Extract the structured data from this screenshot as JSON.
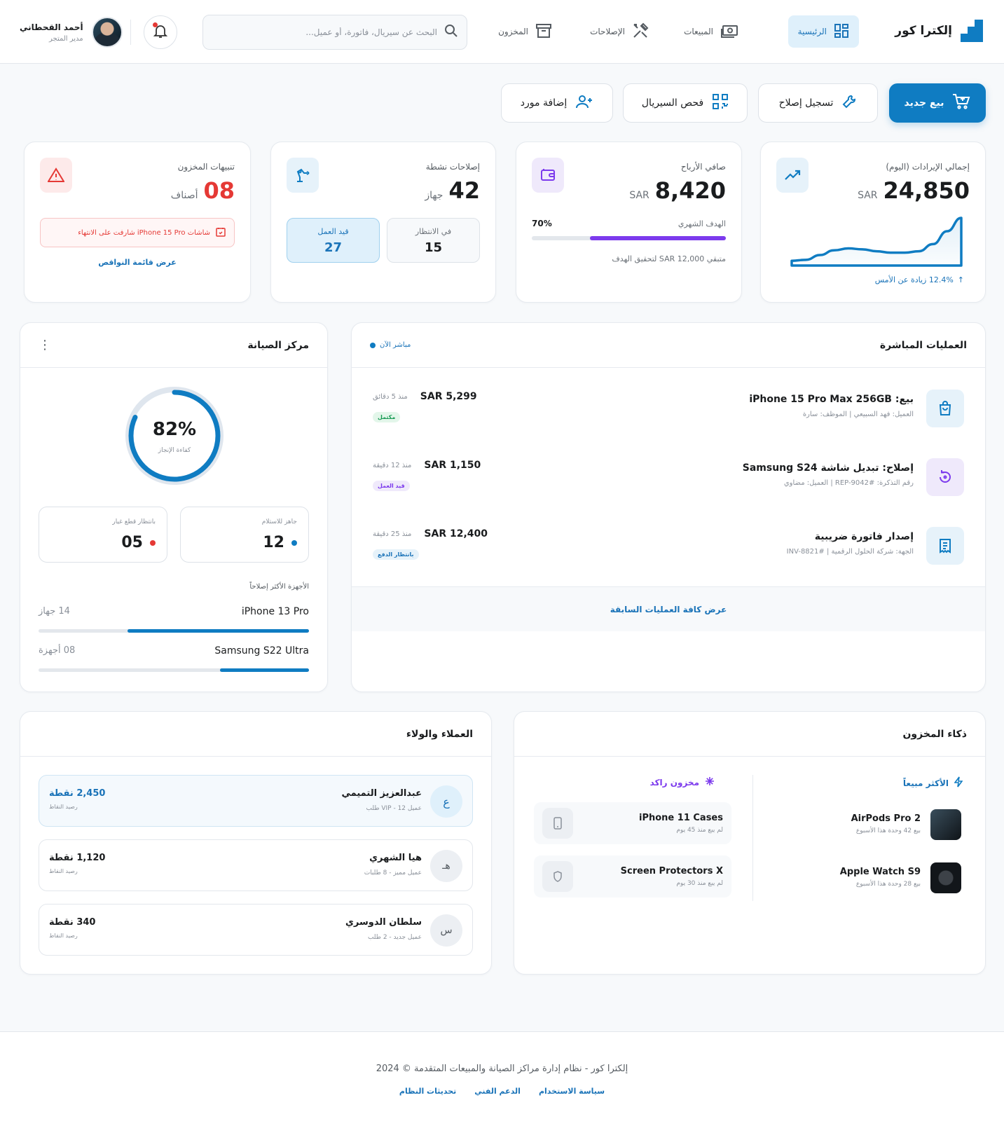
{
  "header": {
    "brand": "إلكترا كور",
    "nav": [
      {
        "label": "الرئيسية",
        "icon": "dashboard-icon",
        "active": true
      },
      {
        "label": "المبيعات",
        "icon": "cash-icon"
      },
      {
        "label": "الإصلاحات",
        "icon": "tools-icon"
      },
      {
        "label": "المخزون",
        "icon": "archive-icon"
      }
    ],
    "search_placeholder": "البحث عن سيريال، فاتورة، أو عميل...",
    "user_name": "أحمد القحطاني",
    "user_role": "مدير المتجر"
  },
  "actions": {
    "new_sale": "بيع جديد",
    "register_repair": "تسجيل إصلاح",
    "check_serial": "فحص السيريال",
    "add_supplier": "إضافة مورد"
  },
  "kpis": {
    "revenue": {
      "label": "إجمالي الإيرادات (اليوم)",
      "value": "24,850",
      "currency": "SAR",
      "change": "12.4% زيادة عن الأمس",
      "trend": [
        0.1,
        0.12,
        0.22,
        0.32,
        0.36,
        0.34,
        0.3,
        0.27,
        0.27,
        0.3,
        0.45,
        0.72,
        1.0
      ]
    },
    "profit": {
      "label": "صافي الأرباح",
      "value": "8,420",
      "currency": "SAR",
      "goal_label": "الهدف الشهري",
      "goal_percent": "70%",
      "goal_fraction": 0.7,
      "remaining": "متبقي SAR 12,000 لتحقيق الهدف"
    },
    "repairs": {
      "label": "إصلاحات نشطة",
      "value": "42",
      "unit": "جهاز",
      "pending_label": "في الانتظار",
      "pending": "15",
      "inprogress_label": "قيد العمل",
      "inprogress": "27"
    },
    "stock": {
      "label": "تنبيهات المخزون",
      "value": "08",
      "unit": "أصناف",
      "alert": "شاشات iPhone 15 Pro شارفت على الانتهاء",
      "link": "عرض قائمة النواقص"
    }
  },
  "live_ops": {
    "title": "العمليات المباشرة",
    "live_label": "مباشر الآن",
    "items": [
      {
        "title": "بيع: iPhone 15 Pro Max 256GB",
        "sub": "العميل: فهد السبيعي | الموظف: سارة",
        "amount": "SAR 5,299",
        "time": "منذ 5 دقائق",
        "status": "مكتمل",
        "icon": "shopping-bag-icon"
      },
      {
        "title": "إصلاح: تبديل شاشة Samsung S24",
        "sub": "رقم التذكرة: #REP-9042 | العميل: مضاوي",
        "amount": "SAR 1,150",
        "time": "منذ 12 دقيقة",
        "status": "قيد العمل",
        "icon": "refresh-icon"
      },
      {
        "title": "إصدار فاتورة ضريبية",
        "sub": "الجهة: شركة الحلول الرقمية | #INV-8821",
        "amount": "SAR 12,400",
        "time": "منذ 25 دقيقة",
        "status": "بانتظار الدفع",
        "icon": "receipt-icon"
      }
    ],
    "view_all": "عرض كافة العمليات السابقة"
  },
  "maintenance": {
    "title": "مركز الصيانة",
    "efficiency": "82%",
    "efficiency_fraction": 0.82,
    "efficiency_label": "كفاءة الإنجاز",
    "ready_label": "جاهز للاستلام",
    "ready": "12",
    "parts_label": "بانتظار قطع غيار",
    "parts": "05",
    "top_devices_label": "الأجهزة الأكثر إصلاحاً",
    "devices": [
      {
        "name": "iPhone 13 Pro",
        "count": "14 جهاز",
        "fraction": 0.67
      },
      {
        "name": "Samsung S22 Ultra",
        "count": "08 أجهزة",
        "fraction": 0.33
      }
    ]
  },
  "inventory": {
    "title": "ذكاء المخزون",
    "best_label": "الأكثر مبيعاً",
    "stale_label": "مخزون راكد",
    "best": [
      {
        "name": "AirPods Pro 2",
        "sub": "بيع 42 وحدة هذا الأسبوع"
      },
      {
        "name": "Apple Watch S9",
        "sub": "بيع 28 وحدة هذا الأسبوع"
      }
    ],
    "stale": [
      {
        "name": "iPhone 11 Cases",
        "sub": "لم يبع منذ 45 يوم"
      },
      {
        "name": "Screen Protectors X",
        "sub": "لم يبع منذ 30 يوم"
      }
    ]
  },
  "customers": {
    "title": "العملاء والولاء",
    "balance_label": "رصيد النقاط",
    "items": [
      {
        "initial": "ع",
        "name": "عبدالعزيز التميمي",
        "sub": "عميل VIP - 12 طلب",
        "points": "2,450 نقطة"
      },
      {
        "initial": "هـ",
        "name": "هيا الشهري",
        "sub": "عميل مميز - 8 طلبات",
        "points": "1,120 نقطة"
      },
      {
        "initial": "س",
        "name": "سلطان الدوسري",
        "sub": "عميل جديد - 2 طلب",
        "points": "340 نقطة"
      }
    ]
  },
  "footer": {
    "text": "إلكترا كور - نظام إدارة مراكز الصيانة والمبيعات المتقدمة © 2024",
    "links": [
      "سياسة الاستخدام",
      "الدعم الفني",
      "تحديثات النظام"
    ]
  },
  "colors": {
    "primary": "#0f7cc2",
    "danger": "#e53935",
    "purple": "#7c3aed",
    "success": "#1a9b55"
  }
}
